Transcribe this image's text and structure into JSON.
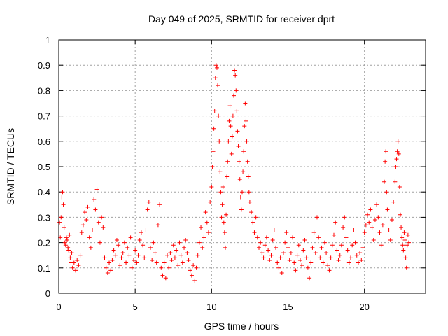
{
  "chart_data": {
    "type": "scatter",
    "title": "Day 049 of 2025, SRMTID for receiver dprt",
    "xlabel": "GPS time / hours",
    "ylabel": "SRMTID / TECUs",
    "xlim": [
      0,
      24
    ],
    "ylim": [
      0,
      1
    ],
    "xticks": [
      0,
      5,
      10,
      15,
      20
    ],
    "yticks": [
      0,
      0.1,
      0.2,
      0.3,
      0.4,
      0.5,
      0.6,
      0.7,
      0.8,
      0.9,
      1
    ],
    "grid": true,
    "marker": "plus",
    "color": "#ff0000",
    "series": [
      {
        "name": "SRMTID",
        "points": [
          [
            0.05,
            0.28
          ],
          [
            0.1,
            0.22
          ],
          [
            0.15,
            0.3
          ],
          [
            0.2,
            0.38
          ],
          [
            0.25,
            0.4
          ],
          [
            0.3,
            0.35
          ],
          [
            0.35,
            0.26
          ],
          [
            0.4,
            0.2
          ],
          [
            0.45,
            0.19
          ],
          [
            0.5,
            0.22
          ],
          [
            0.55,
            0.21
          ],
          [
            0.6,
            0.18
          ],
          [
            0.65,
            0.17
          ],
          [
            0.7,
            0.23
          ],
          [
            0.75,
            0.14
          ],
          [
            0.8,
            0.12
          ],
          [
            0.85,
            0.16
          ],
          [
            0.9,
            0.1
          ],
          [
            1.0,
            0.12
          ],
          [
            1.1,
            0.09
          ],
          [
            1.2,
            0.13
          ],
          [
            1.3,
            0.11
          ],
          [
            1.4,
            0.15
          ],
          [
            1.5,
            0.24
          ],
          [
            1.6,
            0.27
          ],
          [
            1.7,
            0.32
          ],
          [
            1.8,
            0.29
          ],
          [
            1.9,
            0.34
          ],
          [
            2.0,
            0.22
          ],
          [
            2.1,
            0.18
          ],
          [
            2.2,
            0.25
          ],
          [
            2.3,
            0.37
          ],
          [
            2.4,
            0.33
          ],
          [
            2.5,
            0.41
          ],
          [
            2.6,
            0.28
          ],
          [
            2.7,
            0.2
          ],
          [
            2.8,
            0.3
          ],
          [
            2.9,
            0.26
          ],
          [
            3.0,
            0.14
          ],
          [
            3.1,
            0.1
          ],
          [
            3.2,
            0.08
          ],
          [
            3.3,
            0.12
          ],
          [
            3.4,
            0.09
          ],
          [
            3.5,
            0.13
          ],
          [
            3.6,
            0.17
          ],
          [
            3.7,
            0.15
          ],
          [
            3.8,
            0.21
          ],
          [
            3.9,
            0.19
          ],
          [
            4.0,
            0.11
          ],
          [
            4.1,
            0.14
          ],
          [
            4.2,
            0.16
          ],
          [
            4.3,
            0.2
          ],
          [
            4.4,
            0.12
          ],
          [
            4.5,
            0.18
          ],
          [
            4.6,
            0.15
          ],
          [
            4.7,
            0.22
          ],
          [
            4.8,
            0.1
          ],
          [
            4.9,
            0.13
          ],
          [
            5.0,
            0.17
          ],
          [
            5.1,
            0.12
          ],
          [
            5.2,
            0.15
          ],
          [
            5.3,
            0.21
          ],
          [
            5.4,
            0.24
          ],
          [
            5.5,
            0.19
          ],
          [
            5.6,
            0.14
          ],
          [
            5.7,
            0.25
          ],
          [
            5.8,
            0.33
          ],
          [
            5.9,
            0.36
          ],
          [
            6.0,
            0.18
          ],
          [
            6.1,
            0.13
          ],
          [
            6.2,
            0.2
          ],
          [
            6.3,
            0.16
          ],
          [
            6.4,
            0.12
          ],
          [
            6.5,
            0.27
          ],
          [
            6.6,
            0.35
          ],
          [
            6.7,
            0.1
          ],
          [
            6.8,
            0.07
          ],
          [
            6.9,
            0.12
          ],
          [
            7.0,
            0.06
          ],
          [
            7.1,
            0.15
          ],
          [
            7.2,
            0.1
          ],
          [
            7.3,
            0.16
          ],
          [
            7.4,
            0.13
          ],
          [
            7.5,
            0.19
          ],
          [
            7.6,
            0.14
          ],
          [
            7.7,
            0.17
          ],
          [
            7.8,
            0.11
          ],
          [
            7.9,
            0.2
          ],
          [
            8.0,
            0.15
          ],
          [
            8.1,
            0.12
          ],
          [
            8.2,
            0.18
          ],
          [
            8.3,
            0.21
          ],
          [
            8.4,
            0.16
          ],
          [
            8.5,
            0.13
          ],
          [
            8.6,
            0.09
          ],
          [
            8.7,
            0.07
          ],
          [
            8.8,
            0.11
          ],
          [
            8.9,
            0.05
          ],
          [
            9.0,
            0.1
          ],
          [
            9.1,
            0.15
          ],
          [
            9.2,
            0.2
          ],
          [
            9.3,
            0.26
          ],
          [
            9.4,
            0.18
          ],
          [
            9.5,
            0.22
          ],
          [
            9.6,
            0.32
          ],
          [
            9.7,
            0.28
          ],
          [
            9.8,
            0.24
          ],
          [
            9.9,
            0.36
          ],
          [
            10.0,
            0.42
          ],
          [
            10.05,
            0.5
          ],
          [
            10.1,
            0.56
          ],
          [
            10.15,
            0.65
          ],
          [
            10.2,
            0.72
          ],
          [
            10.25,
            0.85
          ],
          [
            10.3,
            0.9
          ],
          [
            10.35,
            0.89
          ],
          [
            10.4,
            0.82
          ],
          [
            10.45,
            0.7
          ],
          [
            10.5,
            0.6
          ],
          [
            10.55,
            0.48
          ],
          [
            10.6,
            0.4
          ],
          [
            10.65,
            0.3
          ],
          [
            10.7,
            0.35
          ],
          [
            10.75,
            0.42
          ],
          [
            10.8,
            0.28
          ],
          [
            10.85,
            0.24
          ],
          [
            10.9,
            0.18
          ],
          [
            10.95,
            0.31
          ],
          [
            11.0,
            0.46
          ],
          [
            11.05,
            0.52
          ],
          [
            11.1,
            0.6
          ],
          [
            11.15,
            0.68
          ],
          [
            11.2,
            0.74
          ],
          [
            11.25,
            0.66
          ],
          [
            11.3,
            0.55
          ],
          [
            11.35,
            0.62
          ],
          [
            11.4,
            0.7
          ],
          [
            11.45,
            0.78
          ],
          [
            11.5,
            0.88
          ],
          [
            11.55,
            0.86
          ],
          [
            11.6,
            0.8
          ],
          [
            11.65,
            0.72
          ],
          [
            11.7,
            0.64
          ],
          [
            11.75,
            0.58
          ],
          [
            11.8,
            0.52
          ],
          [
            11.85,
            0.45
          ],
          [
            11.9,
            0.38
          ],
          [
            11.95,
            0.33
          ],
          [
            12.0,
            0.4
          ],
          [
            12.05,
            0.48
          ],
          [
            12.1,
            0.56
          ],
          [
            12.15,
            0.66
          ],
          [
            12.2,
            0.75
          ],
          [
            12.25,
            0.68
          ],
          [
            12.3,
            0.6
          ],
          [
            12.35,
            0.52
          ],
          [
            12.4,
            0.46
          ],
          [
            12.45,
            0.4
          ],
          [
            12.5,
            0.36
          ],
          [
            12.6,
            0.32
          ],
          [
            12.7,
            0.28
          ],
          [
            12.8,
            0.24
          ],
          [
            12.9,
            0.3
          ],
          [
            13.0,
            0.22
          ],
          [
            13.1,
            0.18
          ],
          [
            13.2,
            0.2
          ],
          [
            13.3,
            0.16
          ],
          [
            13.4,
            0.14
          ],
          [
            13.5,
            0.19
          ],
          [
            13.6,
            0.22
          ],
          [
            13.7,
            0.17
          ],
          [
            13.8,
            0.13
          ],
          [
            13.9,
            0.15
          ],
          [
            14.0,
            0.21
          ],
          [
            14.1,
            0.25
          ],
          [
            14.2,
            0.18
          ],
          [
            14.3,
            0.12
          ],
          [
            14.4,
            0.1
          ],
          [
            14.5,
            0.14
          ],
          [
            14.6,
            0.08
          ],
          [
            14.7,
            0.16
          ],
          [
            14.8,
            0.2
          ],
          [
            14.9,
            0.24
          ],
          [
            15.0,
            0.18
          ],
          [
            15.1,
            0.13
          ],
          [
            15.2,
            0.16
          ],
          [
            15.3,
            0.22
          ],
          [
            15.4,
            0.12
          ],
          [
            15.5,
            0.09
          ],
          [
            15.6,
            0.15
          ],
          [
            15.7,
            0.19
          ],
          [
            15.8,
            0.13
          ],
          [
            15.9,
            0.11
          ],
          [
            16.0,
            0.17
          ],
          [
            16.1,
            0.21
          ],
          [
            16.2,
            0.14
          ],
          [
            16.3,
            0.1
          ],
          [
            16.4,
            0.06
          ],
          [
            16.5,
            0.12
          ],
          [
            16.6,
            0.18
          ],
          [
            16.7,
            0.24
          ],
          [
            16.8,
            0.16
          ],
          [
            16.9,
            0.3
          ],
          [
            17.0,
            0.22
          ],
          [
            17.1,
            0.14
          ],
          [
            17.2,
            0.18
          ],
          [
            17.3,
            0.12
          ],
          [
            17.4,
            0.2
          ],
          [
            17.5,
            0.16
          ],
          [
            17.6,
            0.11
          ],
          [
            17.7,
            0.09
          ],
          [
            17.8,
            0.14
          ],
          [
            17.9,
            0.19
          ],
          [
            18.0,
            0.23
          ],
          [
            18.1,
            0.28
          ],
          [
            18.2,
            0.17
          ],
          [
            18.3,
            0.13
          ],
          [
            18.4,
            0.15
          ],
          [
            18.5,
            0.19
          ],
          [
            18.6,
            0.26
          ],
          [
            18.7,
            0.3
          ],
          [
            18.8,
            0.22
          ],
          [
            18.9,
            0.17
          ],
          [
            19.0,
            0.12
          ],
          [
            19.1,
            0.14
          ],
          [
            19.2,
            0.19
          ],
          [
            19.3,
            0.25
          ],
          [
            19.4,
            0.2
          ],
          [
            19.5,
            0.15
          ],
          [
            19.6,
            0.12
          ],
          [
            19.7,
            0.16
          ],
          [
            19.8,
            0.13
          ],
          [
            19.9,
            0.18
          ],
          [
            20.0,
            0.24
          ],
          [
            20.1,
            0.27
          ],
          [
            20.2,
            0.31
          ],
          [
            20.3,
            0.28
          ],
          [
            20.4,
            0.33
          ],
          [
            20.5,
            0.26
          ],
          [
            20.6,
            0.21
          ],
          [
            20.7,
            0.29
          ],
          [
            20.8,
            0.35
          ],
          [
            20.9,
            0.3
          ],
          [
            21.0,
            0.24
          ],
          [
            21.1,
            0.19
          ],
          [
            21.2,
            0.27
          ],
          [
            21.3,
            0.44
          ],
          [
            21.35,
            0.52
          ],
          [
            21.4,
            0.56
          ],
          [
            21.45,
            0.4
          ],
          [
            21.5,
            0.33
          ],
          [
            21.6,
            0.25
          ],
          [
            21.7,
            0.21
          ],
          [
            21.8,
            0.29
          ],
          [
            21.9,
            0.36
          ],
          [
            22.0,
            0.44
          ],
          [
            22.05,
            0.5
          ],
          [
            22.1,
            0.53
          ],
          [
            22.15,
            0.56
          ],
          [
            22.2,
            0.6
          ],
          [
            22.25,
            0.55
          ],
          [
            22.3,
            0.42
          ],
          [
            22.35,
            0.31
          ],
          [
            22.4,
            0.26
          ],
          [
            22.45,
            0.22
          ],
          [
            22.5,
            0.19
          ],
          [
            22.55,
            0.17
          ],
          [
            22.6,
            0.24
          ],
          [
            22.65,
            0.21
          ],
          [
            22.7,
            0.14
          ],
          [
            22.75,
            0.1
          ],
          [
            22.8,
            0.19
          ],
          [
            22.85,
            0.23
          ],
          [
            22.9,
            0.2
          ]
        ]
      }
    ]
  }
}
